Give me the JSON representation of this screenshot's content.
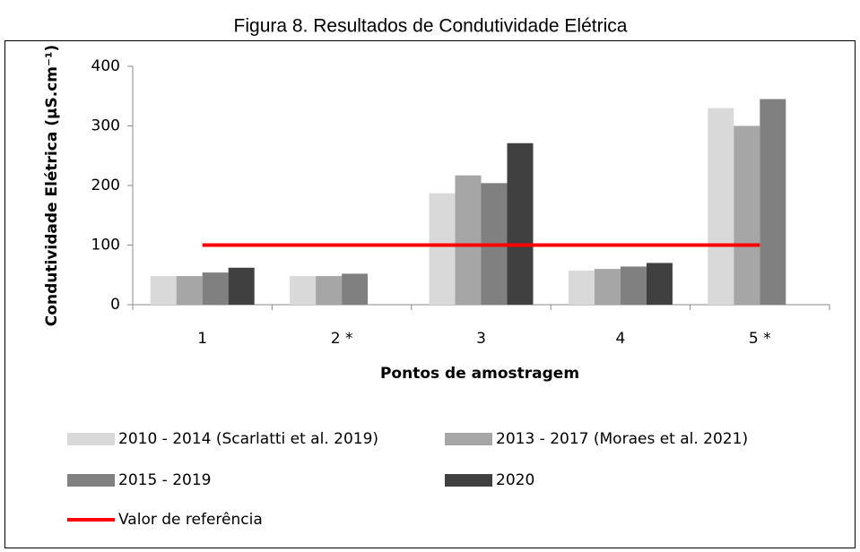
{
  "chart_data": {
    "type": "bar",
    "title": "Figura 8. Resultados de Condutividade Elétrica",
    "y_label": "Condutividade Elétrica (µS.cm⁻¹)",
    "x_label": "Pontos de amostragem",
    "categories": [
      "1",
      "2 *",
      "3",
      "4",
      "5 *"
    ],
    "series": [
      {
        "name": "2010 - 2014 (Scarlatti et al. 2019)",
        "color": "#d9d9d9",
        "values": [
          48,
          48,
          187,
          57,
          330
        ]
      },
      {
        "name": "2013 - 2017 (Moraes et al. 2021)",
        "color": "#a6a6a6",
        "values": [
          48,
          48,
          217,
          60,
          300
        ]
      },
      {
        "name": "2015 - 2019",
        "color": "#808080",
        "values": [
          54,
          52,
          204,
          64,
          345
        ]
      },
      {
        "name": "2020",
        "color": "#404040",
        "values": [
          62,
          null,
          271,
          70,
          null
        ]
      },
      {
        "name": "Valor de referência",
        "color": "#ff0000",
        "type": "line",
        "values": [
          100,
          100,
          100,
          100,
          100
        ]
      }
    ],
    "ylim": [
      0,
      400
    ],
    "yticks": [
      0,
      100,
      200,
      300,
      400
    ],
    "grid": false
  }
}
